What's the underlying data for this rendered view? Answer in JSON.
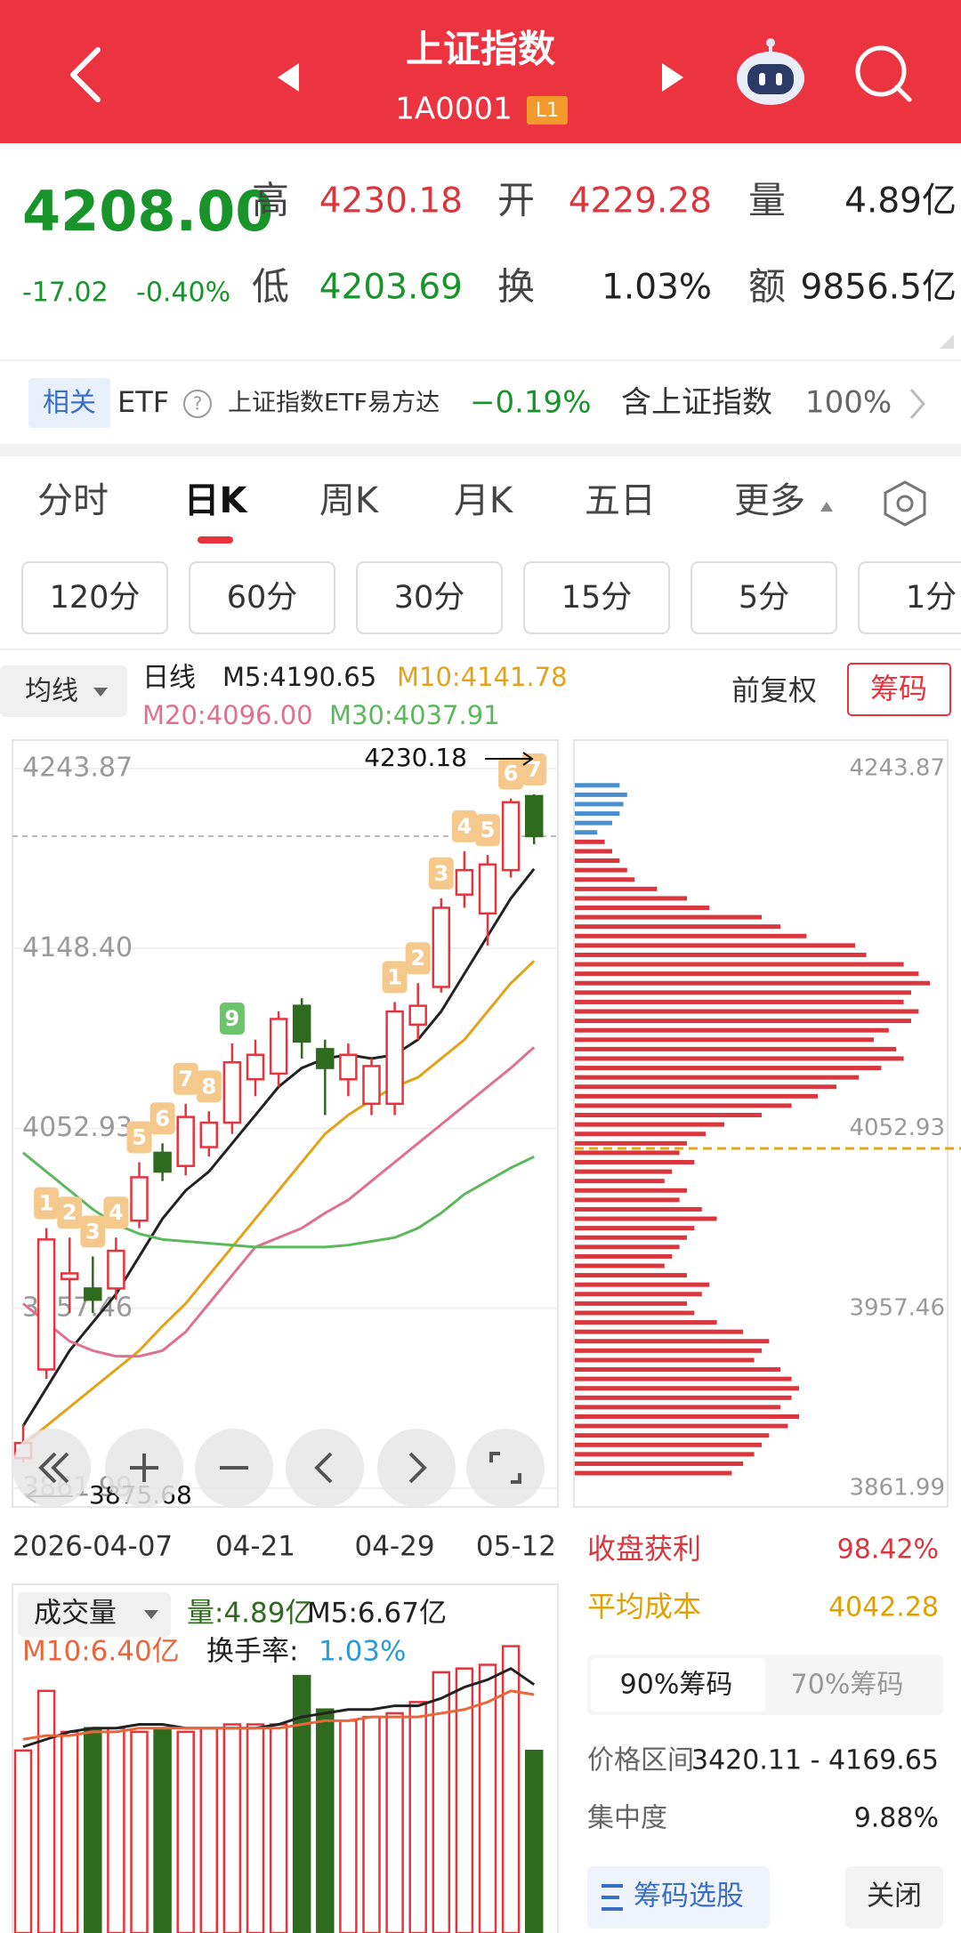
{
  "header": {
    "title": "上证指数",
    "code": "1A0001",
    "level": "L1"
  },
  "quote": {
    "price": "4208.00",
    "change": "-17.02",
    "change_pct": "-0.40%",
    "fields": [
      {
        "label": "高",
        "value": "4230.18",
        "color": "#d9363e"
      },
      {
        "label": "开",
        "value": "4229.28",
        "color": "#d9363e"
      },
      {
        "label": "量",
        "value": "4.89亿",
        "color": "#222222"
      },
      {
        "label": "低",
        "value": "4203.69",
        "color": "#18942a"
      },
      {
        "label": "换",
        "value": "1.03%",
        "color": "#222222"
      },
      {
        "label": "额",
        "value": "9856.5亿",
        "color": "#222222"
      }
    ]
  },
  "related": {
    "tag": "相关",
    "type": "ETF",
    "help": "?",
    "name": "上证指数ETF易方达",
    "change": "−0.19%",
    "holding_label": "含上证指数",
    "holding": "100%"
  },
  "tabs": {
    "items": [
      "分时",
      "日K",
      "周K",
      "月K",
      "五日",
      "更多"
    ],
    "active": 1
  },
  "periods": [
    "120分",
    "60分",
    "30分",
    "15分",
    "5分",
    "1分"
  ],
  "kline": {
    "type": "candlestick",
    "ma_label": "均线",
    "period_label": "日线",
    "adjust": "前复权",
    "chips_button": "筹码",
    "categories": [
      "2026-04-07",
      null,
      null,
      null,
      null,
      null,
      null,
      null,
      null,
      null,
      "04-21",
      null,
      null,
      null,
      null,
      null,
      "04-29",
      null,
      null,
      null,
      null,
      null,
      "05-12"
    ],
    "open": [
      3878,
      3925,
      3973,
      3968,
      3968,
      4004,
      4040,
      4033,
      4043,
      4056,
      4079,
      4082,
      4118,
      4095,
      4079,
      4066,
      4066,
      4108,
      4128,
      4177,
      4167,
      4190,
      4229.28
    ],
    "close": [
      3886,
      3994,
      3976,
      3962,
      3988,
      4027,
      4030,
      4059,
      4056,
      4088,
      4092,
      4111,
      4099,
      4085,
      4092,
      4086,
      4115,
      4118,
      4170,
      4190,
      4193,
      4226,
      4208
    ],
    "high": [
      3896,
      4000,
      3995,
      3985,
      3995,
      4035,
      4045,
      4066,
      4062,
      4098,
      4100,
      4115,
      4122,
      4100,
      4098,
      4090,
      4120,
      4130,
      4175,
      4200,
      4198,
      4228,
      4230.18
    ],
    "low": [
      3875.68,
      3920,
      3955,
      3955,
      3962,
      4000,
      4025,
      4028,
      4038,
      4050,
      4070,
      4075,
      4090,
      4060,
      4070,
      4060,
      4060,
      4100,
      4125,
      4170,
      4150,
      4186,
      4203.69
    ],
    "ylim": [
      3861.99,
      4243.87
    ],
    "yticks": [
      4243.87,
      {
        "value": 4148.4,
        "label": "4148.40"
      },
      4052.93,
      3957.46,
      3861.99
    ],
    "up_color": "#e8323c",
    "down_color": "#2e6b1f",
    "ma": [
      {
        "name": "M5:4190.65",
        "color": "#222222",
        "values": [
          3895,
          3915,
          3935,
          3950,
          3965,
          3985,
          4005,
          4020,
          4030,
          4045,
          4060,
          4075,
          4085,
          4090,
          4092,
          4090,
          4092,
          4100,
          4115,
          4135,
          4155,
          4175,
          4190.65
        ]
      },
      {
        "name": "M10:4141.78",
        "color": "#e3a21a",
        "values": [
          3885,
          3895,
          3905,
          3915,
          3925,
          3935,
          3948,
          3960,
          3975,
          3990,
          4005,
          4020,
          4035,
          4050,
          4060,
          4068,
          4075,
          4080,
          4090,
          4100,
          4115,
          4130,
          4141.78
        ]
      },
      {
        "name": "M20:4096.00",
        "color": "#e0708f",
        "values": [
          3960,
          3950,
          3940,
          3935,
          3932,
          3932,
          3935,
          3945,
          3960,
          3975,
          3990,
          3995,
          4000,
          4008,
          4015,
          4025,
          4035,
          4045,
          4055,
          4065,
          4075,
          4085,
          4096
        ]
      },
      {
        "name": "M30:4037.91",
        "color": "#5cb85c",
        "values": [
          4040,
          4030,
          4020,
          4010,
          4002,
          3997,
          3994,
          3993,
          3992,
          3991,
          3990,
          3990,
          3990,
          3990,
          3991,
          3993,
          3995,
          4000,
          4008,
          4018,
          4025,
          4032,
          4037.91
        ]
      }
    ],
    "high_marker": 4230.18,
    "low_marker": 3875.68,
    "badge_color": "#f5c98c",
    "badges": [
      {
        "label": "1",
        "candle": 1
      },
      {
        "label": "2",
        "candle": 2
      },
      {
        "label": "3",
        "candle": 3
      },
      {
        "label": "4",
        "candle": 4
      },
      {
        "label": "5",
        "candle": 5
      },
      {
        "label": "6",
        "candle": 6
      },
      {
        "label": "7",
        "candle": 7
      },
      {
        "label": "8",
        "candle": 8
      },
      {
        "label": "9",
        "candle": 9,
        "color": "#6cc56c"
      },
      {
        "label": "1",
        "candle": 16
      },
      {
        "label": "2",
        "candle": 17
      },
      {
        "label": "3",
        "candle": 18
      },
      {
        "label": "4",
        "candle": 19
      },
      {
        "label": "5",
        "candle": 20
      },
      {
        "label": "6",
        "candle": 21
      },
      {
        "label": "7",
        "candle": 22
      }
    ]
  },
  "volume": {
    "type": "bar",
    "title": "成交量",
    "summary": "量:4.89亿",
    "turnover_label": "换手率:",
    "turnover": "1.03%",
    "values": [
      4.9,
      6.5,
      5.4,
      5.5,
      5.5,
      5.4,
      5.5,
      5.4,
      5.5,
      5.6,
      5.6,
      5.6,
      6.9,
      6.0,
      5.7,
      5.8,
      5.9,
      6.2,
      7.0,
      7.1,
      7.2,
      7.7,
      4.89
    ],
    "ylim": [
      0,
      8
    ],
    "ma": [
      {
        "name": "M5:6.67亿",
        "color": "#222222",
        "values": [
          5.0,
          5.2,
          5.4,
          5.5,
          5.5,
          5.6,
          5.6,
          5.5,
          5.5,
          5.5,
          5.5,
          5.6,
          5.8,
          5.9,
          6.0,
          6.0,
          6.1,
          6.1,
          6.3,
          6.6,
          6.8,
          7.1,
          6.67
        ]
      },
      {
        "name": "M10:6.40亿",
        "color": "#e8663a",
        "values": [
          5.2,
          5.3,
          5.3,
          5.4,
          5.4,
          5.5,
          5.5,
          5.5,
          5.5,
          5.5,
          5.5,
          5.5,
          5.6,
          5.7,
          5.7,
          5.8,
          5.8,
          5.8,
          5.9,
          6.0,
          6.2,
          6.5,
          6.4
        ]
      }
    ]
  },
  "chips": {
    "type": "bar",
    "orientation": "horizontal",
    "prices": [
      4235,
      4230,
      4225,
      4220,
      4215,
      4210,
      4205,
      4200,
      4195,
      4190,
      4185,
      4180,
      4175,
      4170,
      4165,
      4160,
      4155,
      4150,
      4145,
      4140,
      4135,
      4130,
      4125,
      4120,
      4115,
      4110,
      4105,
      4100,
      4095,
      4090,
      4085,
      4080,
      4075,
      4070,
      4065,
      4060,
      4055,
      4050,
      4045,
      4040,
      4035,
      4030,
      4025,
      4020,
      4015,
      4010,
      4005,
      4000,
      3995,
      3990,
      3985,
      3980,
      3975,
      3970,
      3965,
      3960,
      3955,
      3950,
      3945,
      3940,
      3935,
      3930,
      3925,
      3920,
      3915,
      3910,
      3905,
      3900,
      3895,
      3890,
      3885,
      3880,
      3875,
      3870
    ],
    "values": [
      12,
      14,
      13,
      12,
      10,
      6,
      8,
      10,
      12,
      14,
      16,
      22,
      30,
      36,
      50,
      55,
      62,
      75,
      78,
      88,
      92,
      95,
      90,
      88,
      92,
      90,
      84,
      80,
      86,
      88,
      82,
      76,
      70,
      65,
      58,
      50,
      40,
      35,
      30,
      28,
      32,
      26,
      24,
      30,
      28,
      34,
      38,
      32,
      30,
      28,
      26,
      24,
      30,
      36,
      34,
      30,
      32,
      38,
      45,
      52,
      50,
      48,
      55,
      58,
      60,
      58,
      55,
      60,
      57,
      52,
      50,
      48,
      45,
      42
    ],
    "xlim": [
      0,
      100
    ],
    "profit_color": "#d9363e",
    "loss_color": "#4a8fd0",
    "stats": {
      "profit_label": "收盘获利",
      "profit": "98.42%",
      "avg_label": "平均成本",
      "avg": 4042.28,
      "tabs": [
        "90%筹码",
        "70%筹码"
      ],
      "range_label": "价格区间",
      "range": "3420.11 - 4169.65",
      "concentration_label": "集中度",
      "concentration": "9.88%",
      "screen_button": "筹码选股",
      "close_button": "关闭"
    }
  }
}
